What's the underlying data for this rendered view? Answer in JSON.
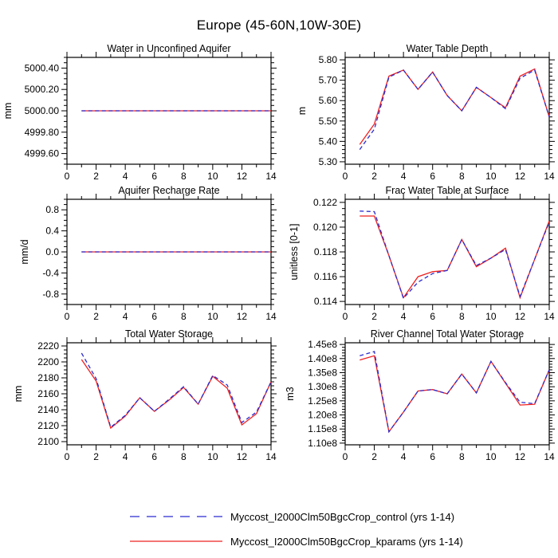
{
  "figure": {
    "title": "Europe (45-60N,10W-30E)"
  },
  "legend": {
    "entries": [
      {
        "label": "Myccost_I2000Clm50BgcCrop_control (yrs 1-14)",
        "color": "#2b2bd0",
        "style": "dashed"
      },
      {
        "label": "Myccost_I2000Clm50BgcCrop_kparams (yrs 1-14)",
        "color": "#ee2020",
        "style": "solid"
      }
    ]
  },
  "chart_data": [
    {
      "type": "line",
      "id": "water-in-unconfined-aquifer",
      "title": "Water in Unconfined Aquifer",
      "ylabel": "mm",
      "x": [
        1,
        2,
        3,
        4,
        5,
        6,
        7,
        8,
        9,
        10,
        11,
        12,
        13,
        14
      ],
      "xrange": [
        0,
        14
      ],
      "xtick_values": [
        0,
        2,
        4,
        6,
        8,
        10,
        12,
        14
      ],
      "xtick_labels": [
        "0",
        "2",
        "4",
        "6",
        "8",
        "10",
        "12",
        "14"
      ],
      "yrange": [
        4999.5,
        5000.5
      ],
      "ytick_values": [
        4999.6,
        4999.8,
        5000.0,
        5000.2,
        5000.4
      ],
      "ytick_labels": [
        "4999.60",
        "4999.80",
        "5000.00",
        "5000.20",
        "5000.40"
      ],
      "y_minor_divs": 3,
      "series": [
        {
          "name": "control",
          "color": "#2b2bd0",
          "style": "dashed",
          "values": [
            5000,
            5000,
            5000,
            5000,
            5000,
            5000,
            5000,
            5000,
            5000,
            5000,
            5000,
            5000,
            5000,
            5000
          ]
        },
        {
          "name": "kparams",
          "color": "#ee2020",
          "style": "solid",
          "values": [
            5000,
            5000,
            5000,
            5000,
            5000,
            5000,
            5000,
            5000,
            5000,
            5000,
            5000,
            5000,
            5000,
            5000
          ]
        }
      ]
    },
    {
      "type": "line",
      "id": "water-table-depth",
      "title": "Water Table Depth",
      "ylabel": "m",
      "x": [
        1,
        2,
        3,
        4,
        5,
        6,
        7,
        8,
        9,
        10,
        11,
        12,
        13,
        14
      ],
      "xrange": [
        0,
        14
      ],
      "xtick_values": [
        0,
        2,
        4,
        6,
        8,
        10,
        12,
        14
      ],
      "xtick_labels": [
        "0",
        "2",
        "4",
        "6",
        "8",
        "10",
        "12",
        "14"
      ],
      "yrange": [
        5.288,
        5.812
      ],
      "ytick_values": [
        5.3,
        5.4,
        5.5,
        5.6,
        5.7,
        5.8
      ],
      "ytick_labels": [
        "5.30",
        "5.40",
        "5.50",
        "5.60",
        "5.70",
        "5.80"
      ],
      "y_minor_divs": 4,
      "series": [
        {
          "name": "control",
          "color": "#2b2bd0",
          "style": "dashed",
          "values": [
            5.36,
            5.46,
            5.715,
            5.75,
            5.655,
            5.74,
            5.625,
            5.55,
            5.665,
            5.615,
            5.56,
            5.71,
            5.75,
            5.52
          ]
        },
        {
          "name": "kparams",
          "color": "#ee2020",
          "style": "solid",
          "values": [
            5.385,
            5.485,
            5.72,
            5.75,
            5.655,
            5.74,
            5.625,
            5.55,
            5.665,
            5.615,
            5.565,
            5.72,
            5.755,
            5.52
          ]
        }
      ]
    },
    {
      "type": "line",
      "id": "aquifer-recharge-rate",
      "title": "Aquifer Recharge Rate",
      "ylabel": "mm/d",
      "x": [
        1,
        2,
        3,
        4,
        5,
        6,
        7,
        8,
        9,
        10,
        11,
        12,
        13,
        14
      ],
      "xrange": [
        0,
        14
      ],
      "xtick_values": [
        0,
        2,
        4,
        6,
        8,
        10,
        12,
        14
      ],
      "xtick_labels": [
        "0",
        "2",
        "4",
        "6",
        "8",
        "10",
        "12",
        "14"
      ],
      "yrange": [
        -1.0,
        1.0
      ],
      "ytick_values": [
        -0.8,
        -0.4,
        0.0,
        0.4,
        0.8
      ],
      "ytick_labels": [
        "-0.8",
        "-0.4",
        "0.0",
        "0.4",
        "0.8"
      ],
      "y_minor_divs": 3,
      "series": [
        {
          "name": "control",
          "color": "#2b2bd0",
          "style": "dashed",
          "values": [
            0,
            0,
            0,
            0,
            0,
            0,
            0,
            0,
            0,
            0,
            0,
            0,
            0,
            0
          ]
        },
        {
          "name": "kparams",
          "color": "#ee2020",
          "style": "solid",
          "values": [
            0,
            0,
            0,
            0,
            0,
            0,
            0,
            0,
            0,
            0,
            0,
            0,
            0,
            0
          ]
        }
      ]
    },
    {
      "type": "line",
      "id": "frac-water-table-at-surface",
      "title": "Frac Water Table at Surface",
      "ylabel": "unitless [0-1]",
      "x": [
        1,
        2,
        3,
        4,
        5,
        6,
        7,
        8,
        9,
        10,
        11,
        12,
        13,
        14
      ],
      "xrange": [
        0,
        14
      ],
      "xtick_values": [
        0,
        2,
        4,
        6,
        8,
        10,
        12,
        14
      ],
      "xtick_labels": [
        "0",
        "2",
        "4",
        "6",
        "8",
        "10",
        "12",
        "14"
      ],
      "yrange": [
        0.11375,
        0.12225
      ],
      "ytick_values": [
        0.114,
        0.116,
        0.118,
        0.12,
        0.122
      ],
      "ytick_labels": [
        "0.114",
        "0.116",
        "0.118",
        "0.120",
        "0.122"
      ],
      "y_minor_divs": 3,
      "series": [
        {
          "name": "control",
          "color": "#2b2bd0",
          "style": "dashed",
          "values": [
            0.1213,
            0.12125,
            0.1177,
            0.11425,
            0.11555,
            0.11625,
            0.1165,
            0.119,
            0.1169,
            0.1175,
            0.1182,
            0.1144,
            0.1174,
            0.1204
          ]
        },
        {
          "name": "kparams",
          "color": "#ee2020",
          "style": "solid",
          "values": [
            0.1209,
            0.1209,
            0.1177,
            0.1143,
            0.116,
            0.1164,
            0.1165,
            0.119,
            0.1168,
            0.1175,
            0.1183,
            0.1143,
            0.1174,
            0.1205
          ]
        }
      ]
    },
    {
      "type": "line",
      "id": "total-water-storage",
      "title": "Total Water Storage",
      "ylabel": "mm",
      "x": [
        1,
        2,
        3,
        4,
        5,
        6,
        7,
        8,
        9,
        10,
        11,
        12,
        13,
        14
      ],
      "xrange": [
        0,
        14
      ],
      "xtick_values": [
        0,
        2,
        4,
        6,
        8,
        10,
        12,
        14
      ],
      "xtick_labels": [
        "0",
        "2",
        "4",
        "6",
        "8",
        "10",
        "12",
        "14"
      ],
      "yrange": [
        2096,
        2224
      ],
      "ytick_values": [
        2100,
        2120,
        2140,
        2160,
        2180,
        2200,
        2220
      ],
      "ytick_labels": [
        "2100",
        "2120",
        "2140",
        "2160",
        "2180",
        "2200",
        "2220"
      ],
      "y_minor_divs": 3,
      "series": [
        {
          "name": "control",
          "color": "#2b2bd0",
          "style": "dashed",
          "values": [
            2211,
            2179,
            2118,
            2133,
            2155,
            2138,
            2153,
            2169,
            2147,
            2183,
            2171,
            2124,
            2137,
            2175
          ]
        },
        {
          "name": "kparams",
          "color": "#ee2020",
          "style": "solid",
          "values": [
            2203,
            2176,
            2117,
            2132,
            2155,
            2138,
            2152,
            2168,
            2147,
            2182,
            2167,
            2121,
            2135,
            2175
          ]
        }
      ]
    },
    {
      "type": "line",
      "id": "river-channel-total-water-storage",
      "title": "River Channel Total Water Storage",
      "ylabel": "m3",
      "x": [
        1,
        2,
        3,
        4,
        5,
        6,
        7,
        8,
        9,
        10,
        11,
        12,
        13,
        14
      ],
      "xrange": [
        0,
        14
      ],
      "xtick_values": [
        0,
        2,
        4,
        6,
        8,
        10,
        12,
        14
      ],
      "xtick_labels": [
        "0",
        "2",
        "4",
        "6",
        "8",
        "10",
        "12",
        "14"
      ],
      "yrange": [
        109400000.0,
        145600000.0
      ],
      "ytick_values": [
        110000000.0,
        115000000.0,
        120000000.0,
        125000000.0,
        130000000.0,
        135000000.0,
        140000000.0,
        145000000.0
      ],
      "ytick_labels": [
        "1.10e8",
        "1.15e8",
        "1.20e8",
        "1.25e8",
        "1.30e8",
        "1.35e8",
        "1.40e8",
        "1.45e8"
      ],
      "y_minor_divs": 4,
      "series": [
        {
          "name": "control",
          "color": "#2b2bd0",
          "style": "dashed",
          "values": [
            141000000.0,
            142500000.0,
            114000000.0,
            121000000.0,
            128500000.0,
            129000000.0,
            127500000.0,
            134500000.0,
            127800000.0,
            139000000.0,
            131500000.0,
            124500000.0,
            124000000.0,
            136000000.0
          ]
        },
        {
          "name": "kparams",
          "color": "#ee2020",
          "style": "solid",
          "values": [
            139500000.0,
            141000000.0,
            114000000.0,
            121000000.0,
            128500000.0,
            129000000.0,
            127500000.0,
            134500000.0,
            127800000.0,
            139000000.0,
            131300000.0,
            123500000.0,
            123800000.0,
            136000000.0
          ]
        }
      ]
    }
  ]
}
